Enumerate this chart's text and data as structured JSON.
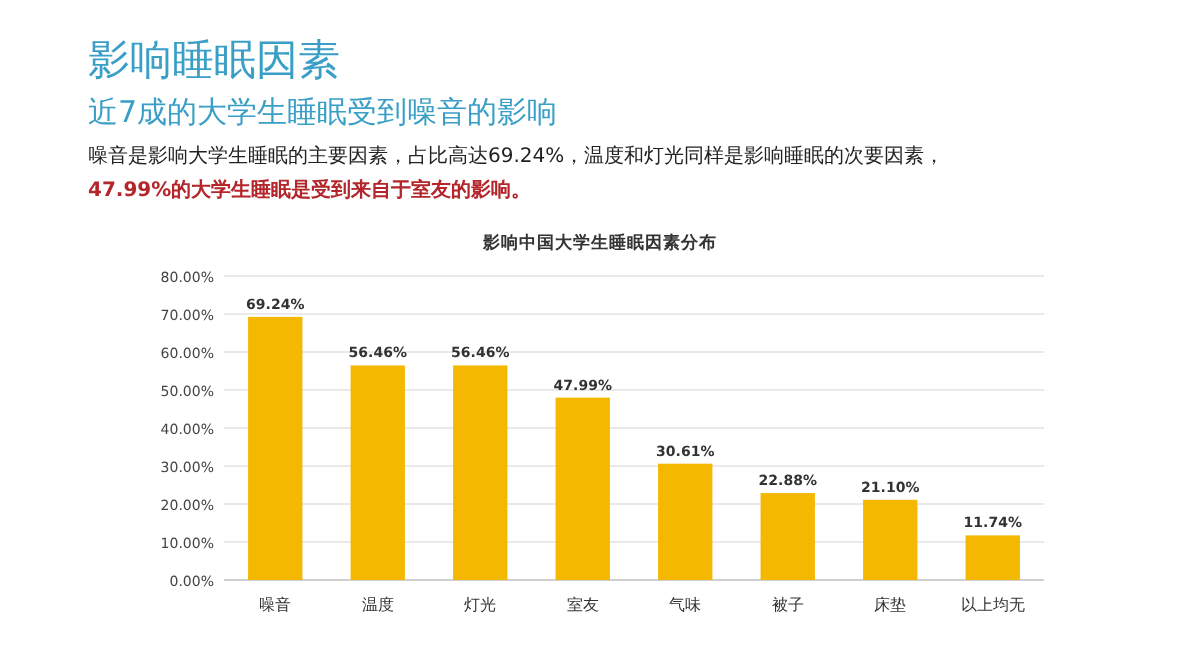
{
  "chart_data": {
    "type": "bar",
    "title": "影响中国大学生睡眠因素分布",
    "annotations": [
      "影响睡眠因素",
      "近7成的大学生睡眠受到噪音的影响",
      "噪音是影响大学生睡眠的主要因素，占比高达69.24%，温度和灯光同样是影响睡眠的次要因素，",
      "47.99%的大学生睡眠是受到来自于室友的影响。"
    ],
    "categories": [
      "噪音",
      "温度",
      "灯光",
      "室友",
      "气味",
      "被子",
      "床垫",
      "以上均无"
    ],
    "values": [
      69.24,
      56.46,
      56.46,
      47.99,
      30.61,
      22.88,
      21.1,
      11.74
    ],
    "value_labels": [
      "69.24%",
      "56.46%",
      "56.46%",
      "47.99%",
      "30.61%",
      "22.88%",
      "21.10%",
      "11.74%"
    ],
    "color": "#f5b800",
    "ylim": [
      0,
      80
    ],
    "yticks": [
      {
        "value": 0,
        "label": "0.00%"
      },
      {
        "value": 10,
        "label": "10.00%"
      },
      {
        "value": 20,
        "label": "20.00%"
      },
      {
        "value": 30,
        "label": "30.00%"
      },
      {
        "value": 40,
        "label": "40.00%"
      },
      {
        "value": 50,
        "label": "50.00%"
      },
      {
        "value": 60,
        "label": "60.00%"
      },
      {
        "value": 70,
        "label": "70.00%"
      },
      {
        "value": 80,
        "label": "80.00%"
      }
    ],
    "grid": "y"
  }
}
